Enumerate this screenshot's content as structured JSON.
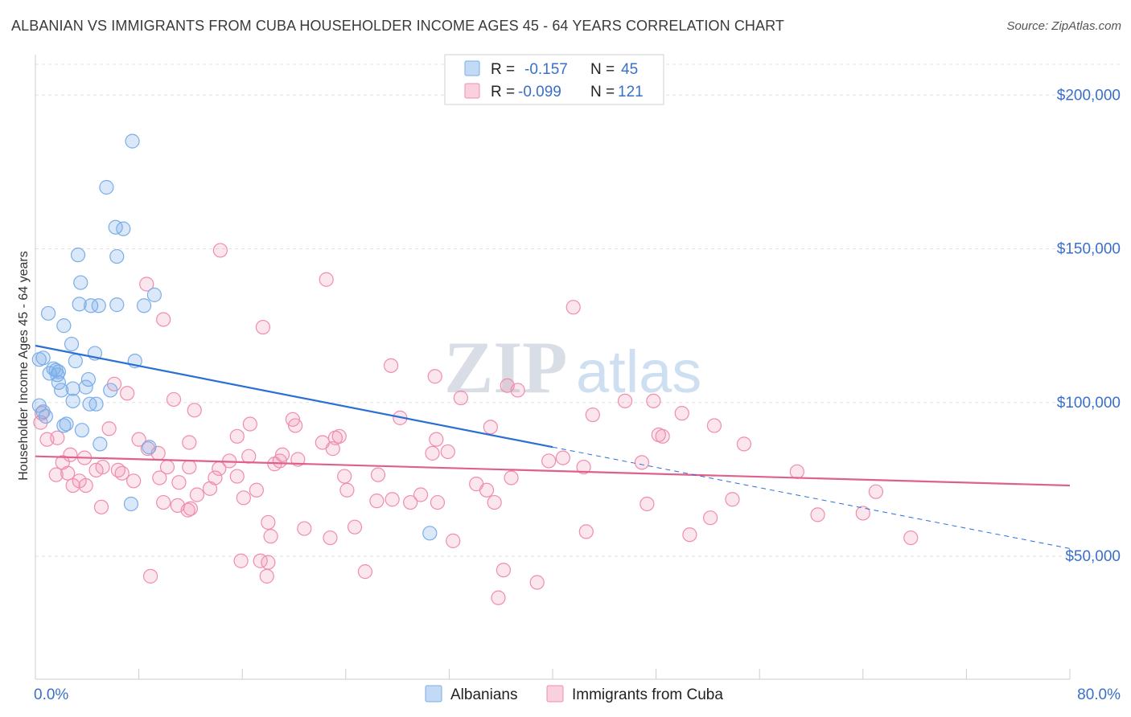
{
  "header": {
    "title": "ALBANIAN VS IMMIGRANTS FROM CUBA HOUSEHOLDER INCOME AGES 45 - 64 YEARS CORRELATION CHART",
    "source": "Source: ZipAtlas.com"
  },
  "watermark": {
    "zip": "ZIP",
    "atlas": "atlas"
  },
  "colors": {
    "blue": "#7aaee8",
    "blue_fill": "rgba(122,174,232,0.28)",
    "blue_line": "#2a6fd4",
    "pink": "#f08cac",
    "pink_fill": "rgba(240,140,172,0.22)",
    "pink_line": "#e0608c",
    "value_text": "#3a6fc9",
    "grid": "#e2e2e2"
  },
  "legend_box": {
    "rows": [
      {
        "r_label": "R =",
        "r_value": "-0.157",
        "n_label": "N =",
        "n_value": "45",
        "series": "blue"
      },
      {
        "r_label": "R =",
        "r_value": "-0.099",
        "n_label": "N =",
        "n_value": "121",
        "series": "pink"
      }
    ]
  },
  "chart_data": {
    "type": "scatter",
    "title": "ALBANIAN VS IMMIGRANTS FROM CUBA HOUSEHOLDER INCOME AGES 45 - 64 YEARS CORRELATION CHART",
    "xlabel": "",
    "ylabel": "Householder Income Ages 45 - 64 years",
    "xlim": [
      0,
      80
    ],
    "ylim": [
      10000,
      210000
    ],
    "x_tick_labels": [
      {
        "value": 0,
        "label": "0.0%"
      },
      {
        "value": 80,
        "label": "80.0%"
      }
    ],
    "y_tick_labels": [
      {
        "value": 50000,
        "label": "$50,000"
      },
      {
        "value": 100000,
        "label": "$100,000"
      },
      {
        "value": 150000,
        "label": "$150,000"
      },
      {
        "value": 200000,
        "label": "$200,000"
      }
    ],
    "grid": true,
    "legend": "bottom-center",
    "series": [
      {
        "name": "Albanians",
        "color": "blue",
        "points": [
          [
            7.5,
            185000
          ],
          [
            5.5,
            170000
          ],
          [
            6.2,
            157000
          ],
          [
            6.8,
            156500
          ],
          [
            3.3,
            148000
          ],
          [
            6.3,
            147500
          ],
          [
            3.5,
            139000
          ],
          [
            1.0,
            129000
          ],
          [
            3.4,
            132000
          ],
          [
            4.3,
            131500
          ],
          [
            4.9,
            131500
          ],
          [
            6.3,
            131800
          ],
          [
            8.4,
            131500
          ],
          [
            9.2,
            135000
          ],
          [
            2.2,
            125000
          ],
          [
            2.8,
            119000
          ],
          [
            4.6,
            116000
          ],
          [
            0.3,
            114000
          ],
          [
            0.6,
            114500
          ],
          [
            3.1,
            113500
          ],
          [
            7.7,
            113500
          ],
          [
            1.4,
            111000
          ],
          [
            1.6,
            110500
          ],
          [
            1.8,
            110000
          ],
          [
            1.1,
            109500
          ],
          [
            1.7,
            109000
          ],
          [
            4.1,
            107500
          ],
          [
            1.8,
            106500
          ],
          [
            2.9,
            104500
          ],
          [
            2.0,
            104000
          ],
          [
            3.9,
            105000
          ],
          [
            5.8,
            104000
          ],
          [
            2.9,
            100500
          ],
          [
            4.2,
            99500
          ],
          [
            4.7,
            99500
          ],
          [
            0.6,
            97000
          ],
          [
            0.8,
            95500
          ],
          [
            2.4,
            93000
          ],
          [
            2.2,
            92500
          ],
          [
            3.6,
            91000
          ],
          [
            5.0,
            86500
          ],
          [
            8.8,
            85500
          ],
          [
            7.4,
            67000
          ],
          [
            30.5,
            57500
          ],
          [
            0.3,
            99000
          ]
        ]
      },
      {
        "name": "Immigrants from Cuba",
        "color": "pink",
        "points": [
          [
            14.3,
            149500
          ],
          [
            22.5,
            140000
          ],
          [
            8.6,
            138500
          ],
          [
            9.9,
            127000
          ],
          [
            17.6,
            124500
          ],
          [
            41.6,
            131000
          ],
          [
            27.5,
            112000
          ],
          [
            30.9,
            108500
          ],
          [
            6.1,
            106000
          ],
          [
            7.1,
            103000
          ],
          [
            10.7,
            101000
          ],
          [
            12.3,
            97500
          ],
          [
            36.5,
            105500
          ],
          [
            37.3,
            104000
          ],
          [
            45.6,
            100500
          ],
          [
            47.8,
            100500
          ],
          [
            43.1,
            96000
          ],
          [
            50.0,
            96500
          ],
          [
            32.9,
            101500
          ],
          [
            0.5,
            96500
          ],
          [
            0.4,
            93500
          ],
          [
            1.7,
            88500
          ],
          [
            5.7,
            91500
          ],
          [
            8.0,
            88000
          ],
          [
            11.9,
            87000
          ],
          [
            15.6,
            89000
          ],
          [
            16.6,
            93000
          ],
          [
            19.9,
            94500
          ],
          [
            20.1,
            92500
          ],
          [
            22.2,
            87000
          ],
          [
            23.2,
            88500
          ],
          [
            23.5,
            89000
          ],
          [
            28.2,
            95000
          ],
          [
            31.0,
            88000
          ],
          [
            35.2,
            92000
          ],
          [
            48.2,
            89500
          ],
          [
            48.5,
            89000
          ],
          [
            52.5,
            92500
          ],
          [
            54.8,
            86500
          ],
          [
            0.9,
            88000
          ],
          [
            2.1,
            80500
          ],
          [
            2.7,
            83000
          ],
          [
            3.8,
            82000
          ],
          [
            5.2,
            79000
          ],
          [
            6.4,
            78000
          ],
          [
            8.7,
            85000
          ],
          [
            9.5,
            83500
          ],
          [
            10.2,
            79000
          ],
          [
            11.9,
            79000
          ],
          [
            13.9,
            75500
          ],
          [
            14.2,
            78500
          ],
          [
            15.0,
            81000
          ],
          [
            16.5,
            82500
          ],
          [
            18.5,
            80000
          ],
          [
            18.9,
            81000
          ],
          [
            19.1,
            83000
          ],
          [
            20.3,
            81500
          ],
          [
            23.0,
            85000
          ],
          [
            30.7,
            83500
          ],
          [
            31.9,
            84000
          ],
          [
            39.7,
            81000
          ],
          [
            40.8,
            82000
          ],
          [
            42.4,
            79000
          ],
          [
            46.9,
            80500
          ],
          [
            58.9,
            77500
          ],
          [
            1.6,
            76500
          ],
          [
            2.5,
            77000
          ],
          [
            2.9,
            73000
          ],
          [
            3.4,
            74500
          ],
          [
            3.9,
            73000
          ],
          [
            4.7,
            78000
          ],
          [
            6.7,
            77000
          ],
          [
            7.6,
            74500
          ],
          [
            9.6,
            75500
          ],
          [
            11.1,
            74000
          ],
          [
            12.5,
            70000
          ],
          [
            13.5,
            72000
          ],
          [
            15.6,
            76000
          ],
          [
            16.1,
            69000
          ],
          [
            17.1,
            71500
          ],
          [
            23.9,
            76000
          ],
          [
            24.1,
            71500
          ],
          [
            26.5,
            76500
          ],
          [
            27.6,
            68500
          ],
          [
            29.0,
            67500
          ],
          [
            29.8,
            70000
          ],
          [
            34.1,
            73500
          ],
          [
            34.9,
            71500
          ],
          [
            36.8,
            75500
          ],
          [
            47.3,
            67000
          ],
          [
            53.9,
            68500
          ],
          [
            65.0,
            71000
          ],
          [
            5.1,
            66000
          ],
          [
            9.9,
            67500
          ],
          [
            11.0,
            66500
          ],
          [
            11.8,
            65000
          ],
          [
            12.0,
            65500
          ],
          [
            26.4,
            68000
          ],
          [
            35.5,
            67500
          ],
          [
            31.1,
            67500
          ],
          [
            52.2,
            62500
          ],
          [
            60.5,
            63500
          ],
          [
            64.0,
            64000
          ],
          [
            18.0,
            61000
          ],
          [
            18.2,
            56500
          ],
          [
            20.8,
            59000
          ],
          [
            22.8,
            56000
          ],
          [
            24.7,
            59500
          ],
          [
            32.3,
            55000
          ],
          [
            42.6,
            58000
          ],
          [
            50.6,
            57000
          ],
          [
            67.7,
            56000
          ],
          [
            8.9,
            43500
          ],
          [
            15.9,
            48500
          ],
          [
            17.4,
            48500
          ],
          [
            18.0,
            48000
          ],
          [
            17.9,
            43500
          ],
          [
            25.5,
            45000
          ],
          [
            36.2,
            45500
          ],
          [
            38.8,
            41500
          ],
          [
            35.8,
            36500
          ]
        ]
      }
    ],
    "trendlines": [
      {
        "series": "Albanians",
        "x_start": 0,
        "y_start": 118500,
        "x_end": 40,
        "y_end": 85500,
        "dashed_x_end": 80,
        "dashed_y_end": 52500
      },
      {
        "series": "Immigrants from Cuba",
        "x_start": 0,
        "y_start": 82500,
        "x_end": 80,
        "y_end": 73000
      }
    ]
  }
}
